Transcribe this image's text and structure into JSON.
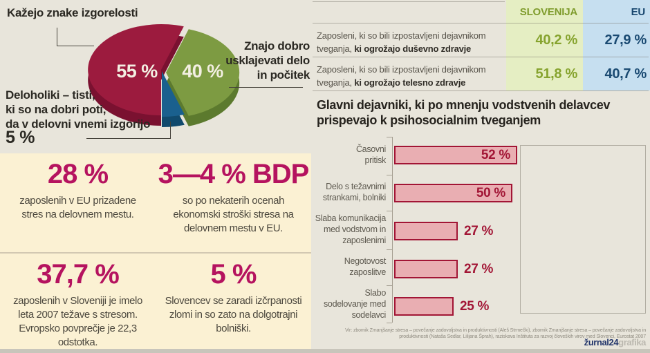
{
  "colors": {
    "background_gray": "#e8e5db",
    "background_cream": "#fbf1d3",
    "accent_magenta": "#b5135f",
    "pie_red": "#9c1b3e",
    "pie_green": "#7d9b42",
    "pie_blue": "#1a608e",
    "bar_fill": "#e9aeb2",
    "bar_border": "#a21535",
    "slovenia_green": "#86a32e",
    "eu_blue": "#1a4a72",
    "bottom_strip": "#c8c5bb"
  },
  "chart_data": [
    {
      "type": "pie",
      "title": "",
      "start_angle_deg": 18,
      "slices": [
        {
          "label": "Znajo dobro usklajevati delo in počitek",
          "value": 40,
          "value_label": "40 %",
          "color": "#7d9b42",
          "depth_color": "#5c7a2e",
          "callout": "Znajo dobro\nusklajevati delo\nin počitek"
        },
        {
          "label": "Deloholiki – tisti, ki so na dobri poti, da v delovni vnemi izgorijo",
          "value": 5,
          "value_label": "5 %",
          "color": "#1a608e",
          "depth_color": "#114a6d",
          "callout": "Deloholiki – tisti,\nki so na dobri poti,\nda v delovni vnemi izgorijo",
          "callout_value": "5 %"
        },
        {
          "label": "Kažejo znake izgorelosti",
          "value": 55,
          "value_label": "55 %",
          "color": "#9c1b3e",
          "depth_color": "#7a1130",
          "callout": "Kažejo znake izgorelosti"
        }
      ]
    },
    {
      "type": "table",
      "columns": [
        "SLOVENIJA",
        "EU"
      ],
      "rows": [
        {
          "label_line1": "Zaposleni, ki so bili izpostavljeni dejavnikom",
          "label_line2_regular": "tveganja, ",
          "label_line2_bold": "ki ogrožajo duševno zdravje",
          "values": [
            40.2,
            27.9
          ],
          "value_labels": [
            "40,2 %",
            "27,9 %"
          ]
        },
        {
          "label_line1": "Zaposleni, ki so bili izpostavljeni dejavnikom",
          "label_line2_regular": "tveganja, ",
          "label_line2_bold": "ki ogrožajo telesno zdravje",
          "values": [
            51.8,
            40.7
          ],
          "value_labels": [
            "51,8 %",
            "40,7 %"
          ]
        }
      ]
    },
    {
      "type": "bar",
      "orientation": "horizontal",
      "title": "Glavni dejavniki, ki po mnenju vodstvenih delavcev\nprispevajo k psihosocialnim tveganjem",
      "xlim": [
        0,
        100
      ],
      "items": [
        {
          "label": "Časovni\npritisk",
          "value": 52,
          "value_label": "52 %"
        },
        {
          "label": "Delo s težavnimi\nstrankami, bolniki",
          "value": 50,
          "value_label": "50 %"
        },
        {
          "label": "Slaba komunikacija\nmed vodstvom in\nzaposlenimi",
          "value": 27,
          "value_label": "27 %"
        },
        {
          "label": "Negotovost\nzaposlitve",
          "value": 27,
          "value_label": "27 %"
        },
        {
          "label": "Slabo\nsodelovanje med\nsodelavci",
          "value": 25,
          "value_label": "25 %"
        }
      ]
    }
  ],
  "stats": [
    {
      "number": "28 %",
      "text": "zaposlenih v EU prizadene\nstres na delovnem mestu."
    },
    {
      "number": "3—4 % BDP",
      "text": "so po nekaterih ocenah\nekonomski stroški stresa na\ndelovnem mestu v EU."
    },
    {
      "number": "37,7 %",
      "text": "zaposlenih v Sloveniji je imelo\nleta 2007 težave s stresom.\nEvropsko povprečje je 22,3\nodstotka."
    },
    {
      "number": "5 %",
      "text": "Slovencev se zaradi izčrpanosti\nzlomi in so zato na dolgotrajni\nbolniški."
    }
  ],
  "footer": {
    "source": "Vir: zbornik Zmanjšanje stresa – povečanje zadovoljstva in produktivnosti (Aleš Strmečki), zbornik Zmanjšanje stresa – povečanje zadovoljstva in\nproduktivnosti (Nataša Sedlar, Lilijana Šprah), raziskava Inštituta za razvoj človeških virov med Slovenci, Eurostat 2007",
    "logo_primary": "žurnal24",
    "logo_secondary": "grafika"
  }
}
